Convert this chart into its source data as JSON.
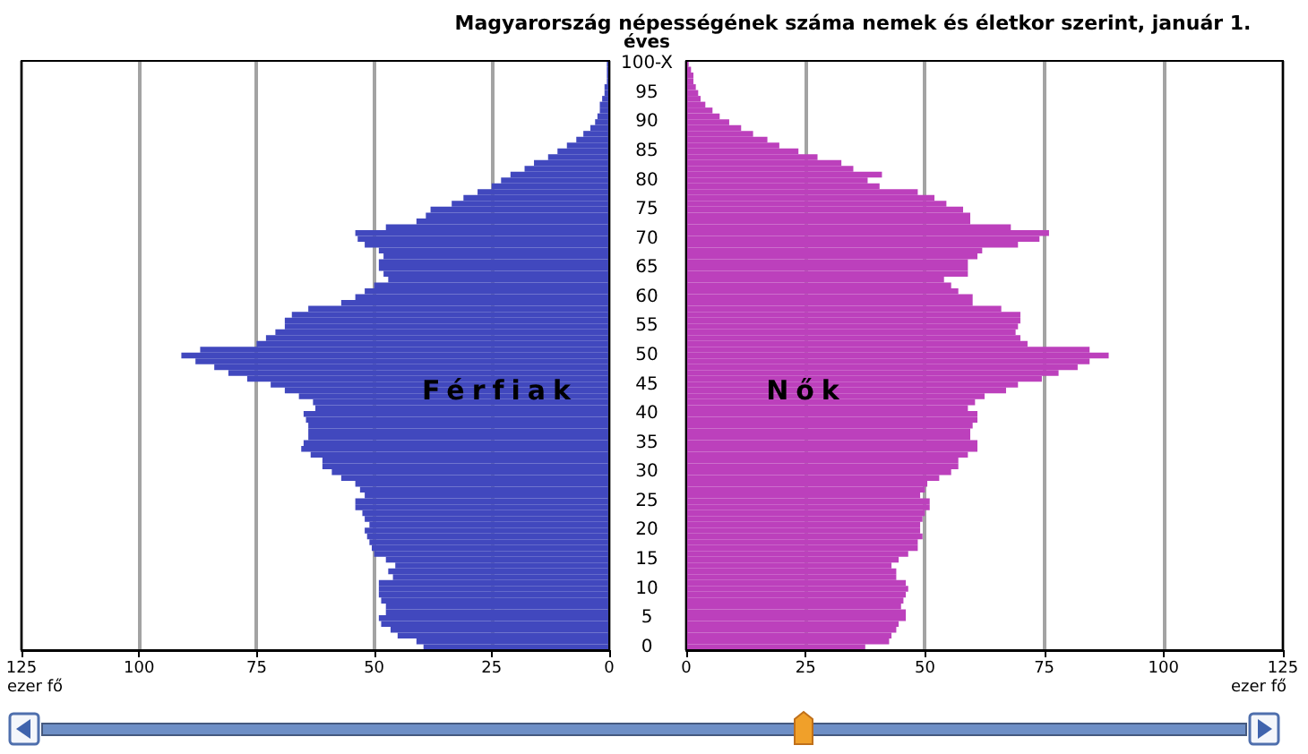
{
  "chart_data": [
    {
      "type": "bar",
      "orientation": "horizontal",
      "title": "Magyarország népességének száma nemek és életkor szerint, január 1.",
      "xlabel": "ezer fő",
      "ylabel": "éves",
      "categories": [
        "100-X",
        null,
        null,
        null,
        null,
        "95",
        null,
        null,
        null,
        null,
        "90",
        null,
        null,
        null,
        null,
        "85",
        null,
        null,
        null,
        null,
        "80",
        null,
        null,
        null,
        null,
        "75",
        null,
        null,
        null,
        null,
        "70",
        null,
        null,
        null,
        null,
        "65",
        null,
        null,
        null,
        null,
        "60",
        null,
        null,
        null,
        null,
        "55",
        null,
        null,
        null,
        null,
        "50",
        null,
        null,
        null,
        null,
        "45",
        null,
        null,
        null,
        null,
        "40",
        null,
        null,
        null,
        null,
        "35",
        null,
        null,
        null,
        null,
        "30",
        null,
        null,
        null,
        null,
        "25",
        null,
        null,
        null,
        null,
        "20",
        null,
        null,
        null,
        null,
        "15",
        null,
        null,
        null,
        null,
        "10",
        null,
        null,
        null,
        null,
        "5",
        null,
        null,
        null,
        null,
        "0"
      ],
      "series": [
        {
          "name": "Férfiak",
          "color": "#4148be",
          "values": [
            0.5,
            0.5,
            0.5,
            0.5,
            1,
            1,
            1.5,
            2,
            2,
            2.5,
            3,
            4,
            5.5,
            7,
            9,
            11,
            13,
            16,
            18,
            21,
            23,
            25,
            28,
            31,
            33.5,
            38,
            39,
            41,
            47.5,
            54,
            53.5,
            52,
            49,
            48,
            49,
            49,
            48,
            47,
            50,
            52,
            54,
            57,
            64,
            67.5,
            69,
            69,
            71,
            73,
            75,
            87,
            91,
            88,
            84,
            81,
            77,
            72,
            69,
            66,
            63,
            62.5,
            65,
            64.5,
            64,
            64,
            64,
            65,
            65.5,
            63.5,
            61,
            61,
            59,
            57,
            54,
            53,
            52,
            54,
            54,
            52.5,
            52,
            51,
            52,
            51.5,
            51,
            50.5,
            50,
            47.5,
            45.5,
            47,
            46,
            49,
            49,
            49,
            48.5,
            47.5,
            47.5,
            49,
            48.5,
            46.5,
            45,
            41,
            39.5
          ]
        }
      ],
      "xlim": [
        125,
        0
      ],
      "xticks": [
        125,
        100,
        75,
        50,
        25,
        0
      ],
      "grid": "x"
    },
    {
      "type": "bar",
      "orientation": "horizontal",
      "xlabel": "ezer fő",
      "categories": [
        null,
        null,
        null,
        null,
        null,
        null,
        null,
        null,
        null,
        null,
        null,
        null,
        null,
        null,
        null,
        null,
        null,
        null,
        null,
        null,
        null,
        null,
        null,
        null,
        null,
        null,
        null,
        null,
        null,
        null,
        null,
        null,
        null,
        null,
        null,
        null,
        null,
        null,
        null,
        null,
        null,
        null,
        null,
        null,
        null,
        null,
        null,
        null,
        null,
        null,
        null,
        null,
        null,
        null,
        null,
        null,
        null,
        null,
        null,
        null,
        null,
        null,
        null,
        null,
        null,
        null,
        null,
        null,
        null,
        null,
        null,
        null,
        null,
        null,
        null,
        null,
        null,
        null,
        null,
        null,
        null,
        null,
        null,
        null,
        null,
        null,
        null,
        null,
        null,
        null,
        null,
        null,
        null,
        null,
        null,
        null,
        null,
        null,
        null,
        null,
        null
      ],
      "series": [
        {
          "name": "Nők",
          "color": "#bc40bc",
          "values": [
            0.5,
            1,
            1.5,
            1.5,
            2,
            2.5,
            3,
            4,
            5.5,
            7,
            9,
            11.5,
            14,
            17,
            19.5,
            23.5,
            27.5,
            32.5,
            35,
            41,
            38,
            40.5,
            48.5,
            52,
            54.5,
            58,
            59.5,
            59.5,
            68,
            76,
            74,
            69.5,
            62,
            61,
            59,
            59,
            59,
            54,
            55.5,
            57,
            60,
            60,
            66,
            70,
            70,
            69.5,
            69,
            70,
            71.5,
            84.5,
            88.5,
            84.5,
            82,
            78,
            74.5,
            69.5,
            67,
            62.5,
            60.5,
            59,
            61,
            61,
            60,
            59.5,
            59.5,
            61,
            61,
            59,
            57,
            57,
            55.5,
            53,
            50.5,
            50,
            49,
            51,
            51,
            50,
            49.5,
            49,
            49,
            49.5,
            48.5,
            48.5,
            46.5,
            44.5,
            43,
            44,
            44,
            46,
            46.5,
            46,
            45.5,
            45,
            46,
            46,
            44.5,
            44,
            43,
            42.5,
            37.5
          ]
        }
      ],
      "xlim": [
        0,
        125
      ],
      "xticks": [
        0,
        25,
        50,
        75,
        100,
        125
      ],
      "grid": "x"
    }
  ]
}
